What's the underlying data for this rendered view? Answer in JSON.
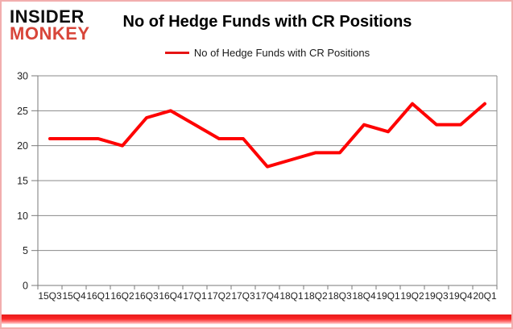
{
  "logo": {
    "line1": "INSIDER",
    "line2": "MONKEY"
  },
  "colors": {
    "line": "#fe0000",
    "grid": "#8a8a8a",
    "axis": "#7a7a7a",
    "logo_red": "#d8463a",
    "frame_border": "#f2aeae",
    "bottom_bar_red": "#fb2525"
  },
  "chart_data": {
    "type": "line",
    "title": "No of Hedge Funds with CR Positions",
    "series_name": "No of Hedge Funds with CR Positions",
    "categories": [
      "15Q3",
      "15Q4",
      "16Q1",
      "16Q2",
      "16Q3",
      "16Q4",
      "17Q1",
      "17Q2",
      "17Q3",
      "17Q4",
      "18Q1",
      "18Q2",
      "18Q3",
      "18Q4",
      "19Q1",
      "19Q2",
      "19Q3",
      "19Q4",
      "20Q1"
    ],
    "values": [
      21,
      21,
      21,
      20,
      24,
      25,
      23,
      21,
      21,
      17,
      18,
      19,
      19,
      23,
      22,
      26,
      23,
      23,
      26
    ],
    "ylim": [
      0,
      30
    ],
    "ytick_step": 5,
    "y_ticks": [
      0,
      5,
      10,
      15,
      20,
      25,
      30
    ],
    "grid": "horizontal",
    "legend_position": "top"
  }
}
